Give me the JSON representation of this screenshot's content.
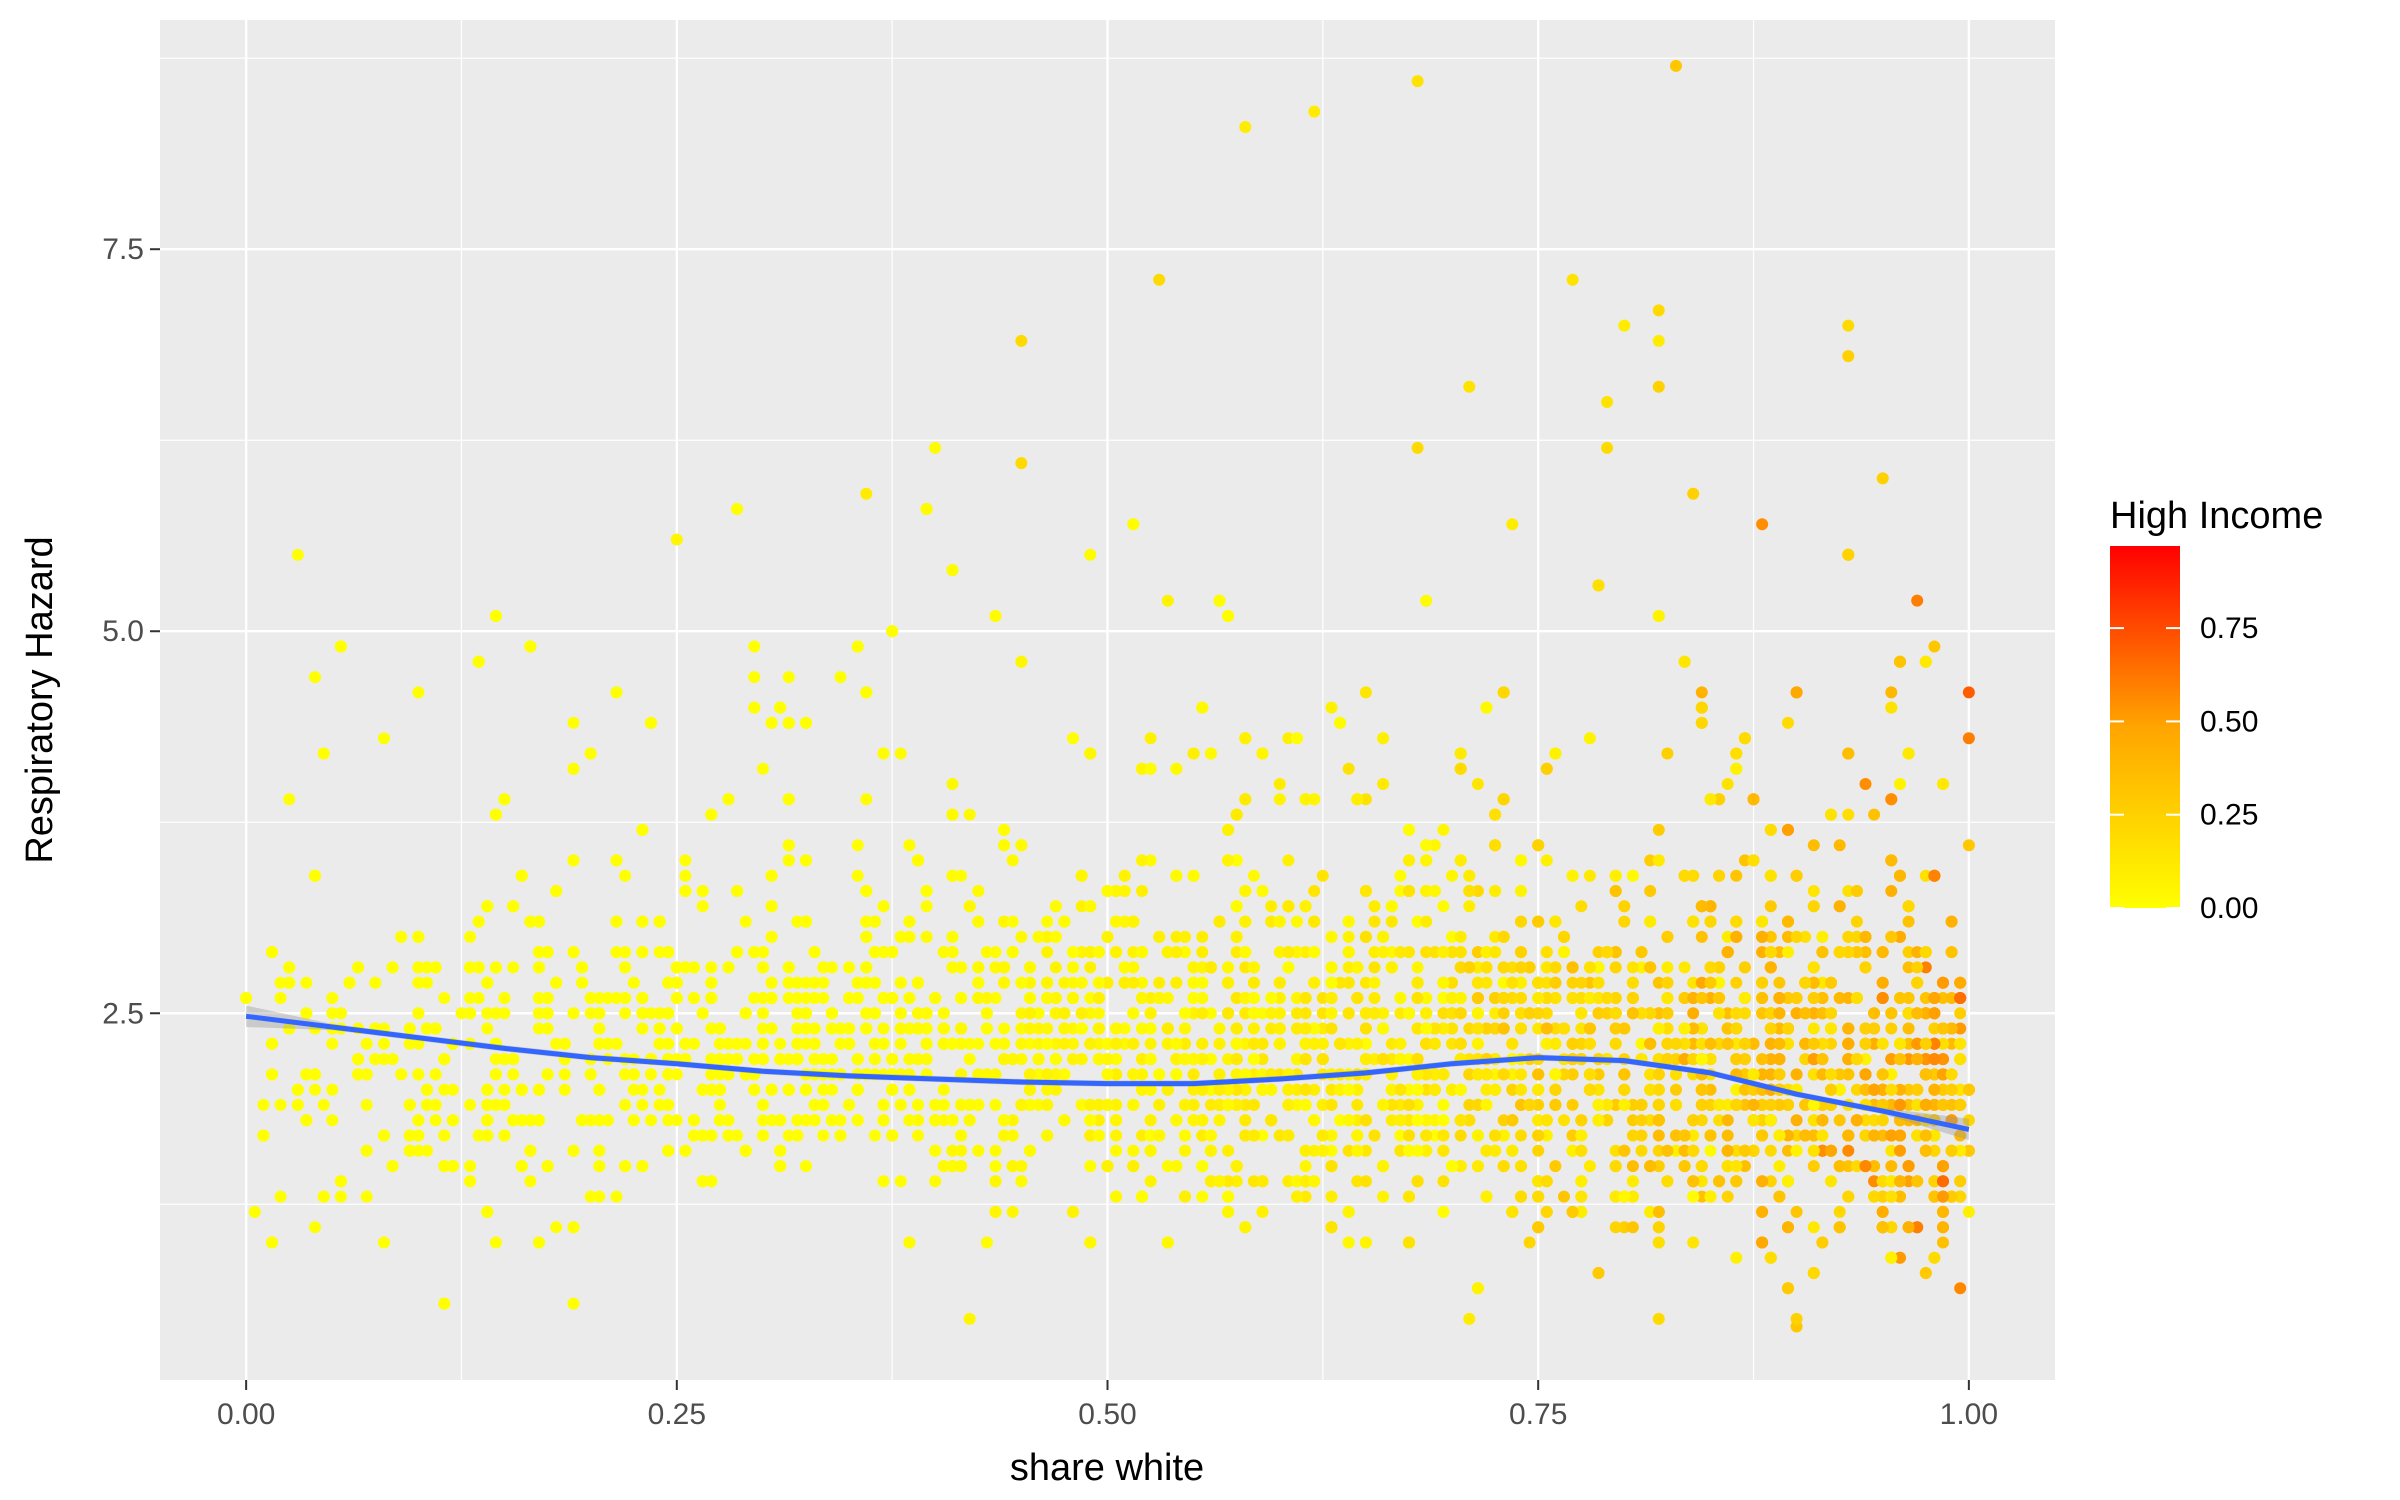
{
  "chart_data": {
    "type": "scatter",
    "title": "",
    "xlabel": "share white",
    "ylabel": "Respiratory Hazard",
    "xlim": [
      -0.05,
      1.05
    ],
    "ylim": [
      0.1,
      9.0
    ],
    "x_ticks": [
      0.0,
      0.25,
      0.5,
      0.75,
      1.0
    ],
    "x_tick_labels": [
      "0.00",
      "0.25",
      "0.50",
      "0.75",
      "1.00"
    ],
    "y_ticks": [
      2.5,
      5.0,
      7.5
    ],
    "y_tick_labels": [
      "2.5",
      "5.0",
      "7.5"
    ],
    "grid": true,
    "legend": {
      "title": "High Income",
      "position": "right",
      "type": "colorbar",
      "range": [
        0.0,
        0.97
      ],
      "breaks": [
        0.0,
        0.25,
        0.5,
        0.75
      ],
      "break_labels": [
        "0.00",
        "0.25",
        "0.50",
        "0.75"
      ],
      "low_color": "#ffff00",
      "high_color": "#ff0000"
    },
    "colors": {
      "panel_bg": "#ebebeb",
      "grid_major": "#ffffff",
      "smooth_line": "#3366ff",
      "smooth_band": "#999999"
    },
    "smooth_line": {
      "x": [
        0.0,
        0.05,
        0.1,
        0.15,
        0.2,
        0.25,
        0.3,
        0.35,
        0.4,
        0.45,
        0.5,
        0.55,
        0.6,
        0.65,
        0.7,
        0.75,
        0.8,
        0.85,
        0.9,
        0.95,
        1.0
      ],
      "y": [
        2.48,
        2.41,
        2.34,
        2.27,
        2.21,
        2.17,
        2.12,
        2.09,
        2.07,
        2.05,
        2.04,
        2.04,
        2.07,
        2.11,
        2.17,
        2.21,
        2.19,
        2.11,
        1.97,
        1.86,
        1.74
      ]
    },
    "outliers": [
      {
        "x": 0.83,
        "y": 8.7,
        "c": 0.3
      },
      {
        "x": 0.68,
        "y": 8.6,
        "c": 0.15
      },
      {
        "x": 0.62,
        "y": 8.4,
        "c": 0.1
      },
      {
        "x": 0.58,
        "y": 8.3,
        "c": 0.1
      },
      {
        "x": 0.53,
        "y": 7.3,
        "c": 0.2
      },
      {
        "x": 0.77,
        "y": 7.3,
        "c": 0.15
      },
      {
        "x": 0.82,
        "y": 7.1,
        "c": 0.2
      },
      {
        "x": 0.8,
        "y": 7.0,
        "c": 0.1
      },
      {
        "x": 0.93,
        "y": 7.0,
        "c": 0.2
      },
      {
        "x": 0.82,
        "y": 6.9,
        "c": 0.1
      },
      {
        "x": 0.45,
        "y": 6.9,
        "c": 0.2
      },
      {
        "x": 0.93,
        "y": 6.8,
        "c": 0.25
      },
      {
        "x": 0.71,
        "y": 6.6,
        "c": 0.15
      },
      {
        "x": 0.82,
        "y": 6.6,
        "c": 0.25
      },
      {
        "x": 0.79,
        "y": 6.5,
        "c": 0.15
      },
      {
        "x": 0.68,
        "y": 6.2,
        "c": 0.2
      },
      {
        "x": 0.79,
        "y": 6.2,
        "c": 0.2
      },
      {
        "x": 0.45,
        "y": 6.1,
        "c": 0.2
      },
      {
        "x": 0.95,
        "y": 6.0,
        "c": 0.25
      },
      {
        "x": 0.36,
        "y": 5.9,
        "c": 0.1
      },
      {
        "x": 0.25,
        "y": 5.6,
        "c": 0.05
      },
      {
        "x": 0.03,
        "y": 5.5,
        "c": 0.0
      },
      {
        "x": 0.88,
        "y": 5.7,
        "c": 0.55
      },
      {
        "x": 0.97,
        "y": 5.2,
        "c": 0.6
      },
      {
        "x": 0.19,
        "y": 0.6,
        "c": 0.0
      },
      {
        "x": 0.42,
        "y": 0.5,
        "c": 0.05
      },
      {
        "x": 0.9,
        "y": 0.45,
        "c": 0.3
      },
      {
        "x": 0.9,
        "y": 0.5,
        "c": 0.25
      },
      {
        "x": 0.82,
        "y": 0.5,
        "c": 0.2
      },
      {
        "x": 0.71,
        "y": 0.5,
        "c": 0.1
      },
      {
        "x": 0.04,
        "y": 1.1,
        "c": 0.0
      },
      {
        "x": 0.18,
        "y": 1.1,
        "c": 0.0
      },
      {
        "x": 0.02,
        "y": 1.3,
        "c": 0.0
      },
      {
        "x": 1.0,
        "y": 4.6,
        "c": 0.7
      },
      {
        "x": 1.0,
        "y": 4.3,
        "c": 0.6
      },
      {
        "x": 0.04,
        "y": 4.7,
        "c": 0.0
      }
    ],
    "cloud": {
      "description_free": true,
      "x_range": [
        0.0,
        1.0
      ],
      "color_range": [
        0.0,
        0.97
      ]
    }
  }
}
